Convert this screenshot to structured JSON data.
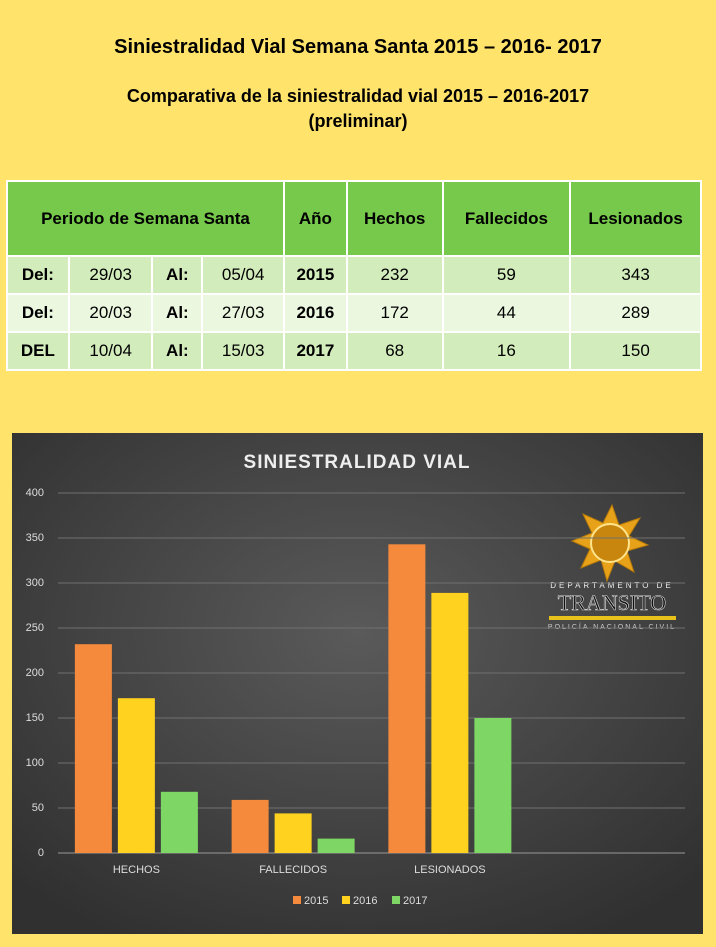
{
  "header": {
    "title": "Siniestralidad Vial Semana Santa 2015 – 2016- 2017",
    "subtitle_line1": "Comparativa de la siniestralidad vial 2015 – 2016-2017",
    "subtitle_line2": "(preliminar)"
  },
  "table": {
    "header": [
      "Periodo de Semana Santa",
      "Año",
      "Hechos",
      "Fallecidos",
      "Lesionados"
    ],
    "rows": [
      [
        "Del:",
        "29/03",
        "Al:",
        "05/04",
        "2015",
        "232",
        "59",
        "343"
      ],
      [
        "Del:",
        "20/03",
        "Al:",
        "27/03",
        "2016",
        "172",
        "44",
        "289"
      ],
      [
        "DEL",
        "10/04",
        "Al:",
        "15/03",
        "2017",
        "68",
        "16",
        "150"
      ]
    ]
  },
  "logo": {
    "line1": "DEPARTAMENTO DE",
    "line2": "TRANSITO",
    "line3": "POLICÍA NACIONAL CIVIL"
  },
  "chart_data": {
    "type": "bar",
    "title": "SINIESTRALIDAD VIAL",
    "categories": [
      "HECHOS",
      "FALLECIDOS",
      "LESIONADOS",
      null
    ],
    "series": [
      {
        "name": "2015",
        "color": "#f58a3c",
        "values": [
          232,
          59,
          343,
          null
        ]
      },
      {
        "name": "2016",
        "color": "#ffd21f",
        "values": [
          172,
          44,
          289,
          null
        ]
      },
      {
        "name": "2017",
        "color": "#7ed665",
        "values": [
          68,
          16,
          150,
          null
        ]
      }
    ],
    "ylim": [
      0,
      400
    ],
    "yticks": [
      0,
      50,
      100,
      150,
      200,
      250,
      300,
      350,
      400
    ],
    "grid": true,
    "legend": "bottom"
  }
}
